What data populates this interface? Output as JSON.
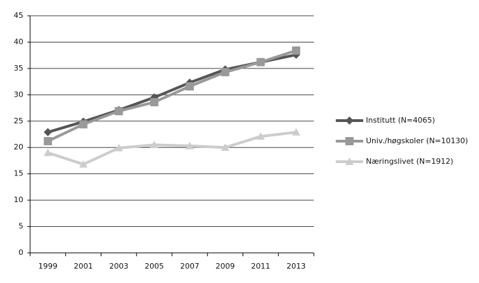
{
  "chart_data": {
    "type": "line",
    "categories": [
      "1999",
      "2001",
      "2003",
      "2005",
      "2007",
      "2009",
      "2011",
      "2013"
    ],
    "series": [
      {
        "name": "Institutt (N=4065)",
        "color": "#555555",
        "marker": "diamond",
        "values": [
          22.9,
          24.9,
          27.1,
          29.5,
          32.3,
          34.8,
          36.2,
          37.6
        ]
      },
      {
        "name": "Univ./høgskoler (N=10130)",
        "color": "#999999",
        "marker": "square",
        "values": [
          21.2,
          24.4,
          26.9,
          28.6,
          31.6,
          34.3,
          36.2,
          38.4
        ]
      },
      {
        "name": "Næringslivet (N=1912)",
        "color": "#cccccc",
        "marker": "triangle",
        "values": [
          19.0,
          16.8,
          19.9,
          20.5,
          20.3,
          20.0,
          22.1,
          22.9
        ]
      }
    ],
    "ylim": [
      0,
      45
    ],
    "yticks": [
      0,
      5,
      10,
      15,
      20,
      25,
      30,
      35,
      40,
      45
    ],
    "grid": true,
    "legend": "right"
  }
}
